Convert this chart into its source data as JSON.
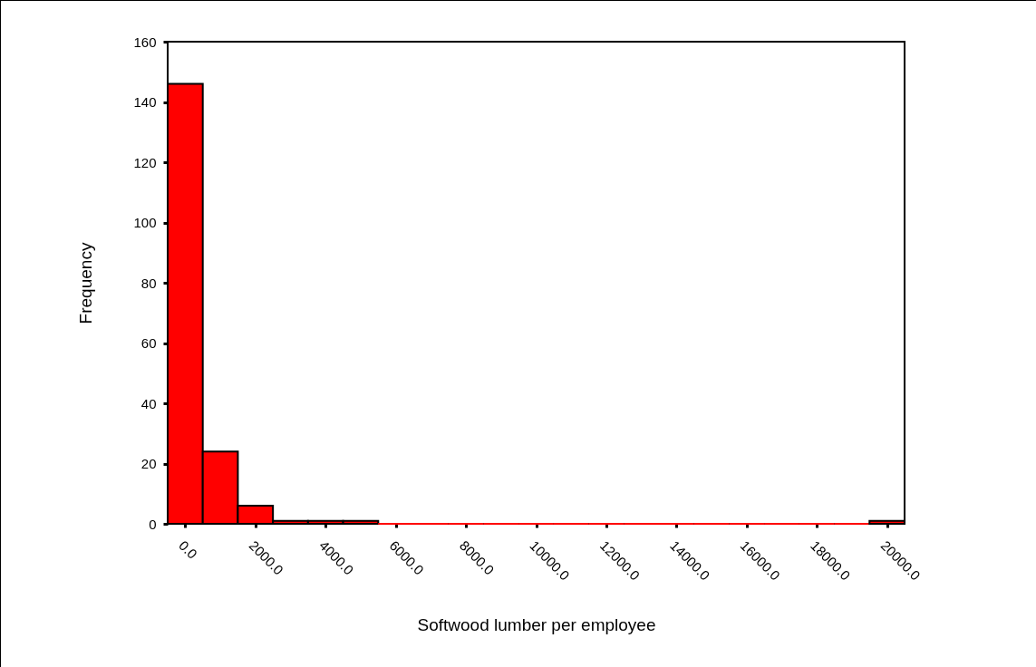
{
  "chart_data": {
    "type": "histogram",
    "xlabel": "Softwood lumber per employee",
    "ylabel": "Frequency",
    "bins": [
      -500,
      500,
      1500,
      2500,
      3500,
      4500,
      5500,
      6500,
      7500,
      8500,
      9500,
      10500,
      11500,
      12500,
      13500,
      14500,
      15500,
      16500,
      17500,
      18500,
      19500,
      20500
    ],
    "values": [
      146,
      24,
      6,
      1,
      1,
      1,
      0,
      0,
      0,
      0,
      0,
      0,
      0,
      0,
      0,
      0,
      0,
      0,
      0,
      0,
      1
    ],
    "color": "#ff0000",
    "xlim": [
      -500,
      20500
    ],
    "xticks": [
      {
        "value": 0,
        "label": "0.0"
      },
      {
        "value": 2000,
        "label": "2000.0"
      },
      {
        "value": 4000,
        "label": "4000.0"
      },
      {
        "value": 6000,
        "label": "6000.0"
      },
      {
        "value": 8000,
        "label": "8000.0"
      },
      {
        "value": 10000,
        "label": "10000.0"
      },
      {
        "value": 12000,
        "label": "12000.0"
      },
      {
        "value": 14000,
        "label": "14000.0"
      },
      {
        "value": 16000,
        "label": "16000.0"
      },
      {
        "value": 18000,
        "label": "18000.0"
      },
      {
        "value": 20000,
        "label": "20000.0"
      }
    ],
    "ylim": [
      0,
      160
    ],
    "yticks": [
      0,
      20,
      40,
      60,
      80,
      100,
      120,
      140,
      160
    ],
    "grid": false
  }
}
